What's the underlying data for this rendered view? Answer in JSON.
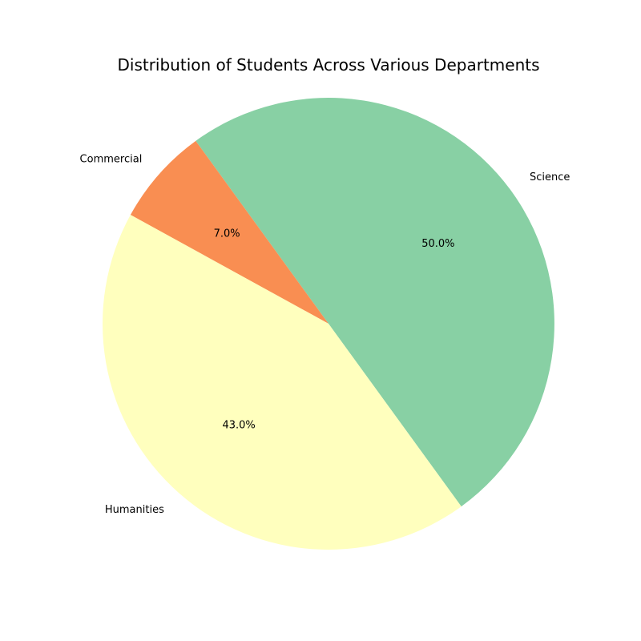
{
  "chart_data": {
    "type": "pie",
    "title": "Distribution of Students Across Various Departments",
    "categories": [
      "Science",
      "Commercial",
      "Humanities"
    ],
    "values": [
      50.0,
      7.0,
      43.0
    ],
    "percent_labels": [
      "50.0%",
      "7.0%",
      "43.0%"
    ],
    "colors": [
      "#88d0a4",
      "#f98e52",
      "#ffffbe"
    ],
    "start_angle_deg": -54,
    "direction": "counterclockwise",
    "legend": "none"
  }
}
